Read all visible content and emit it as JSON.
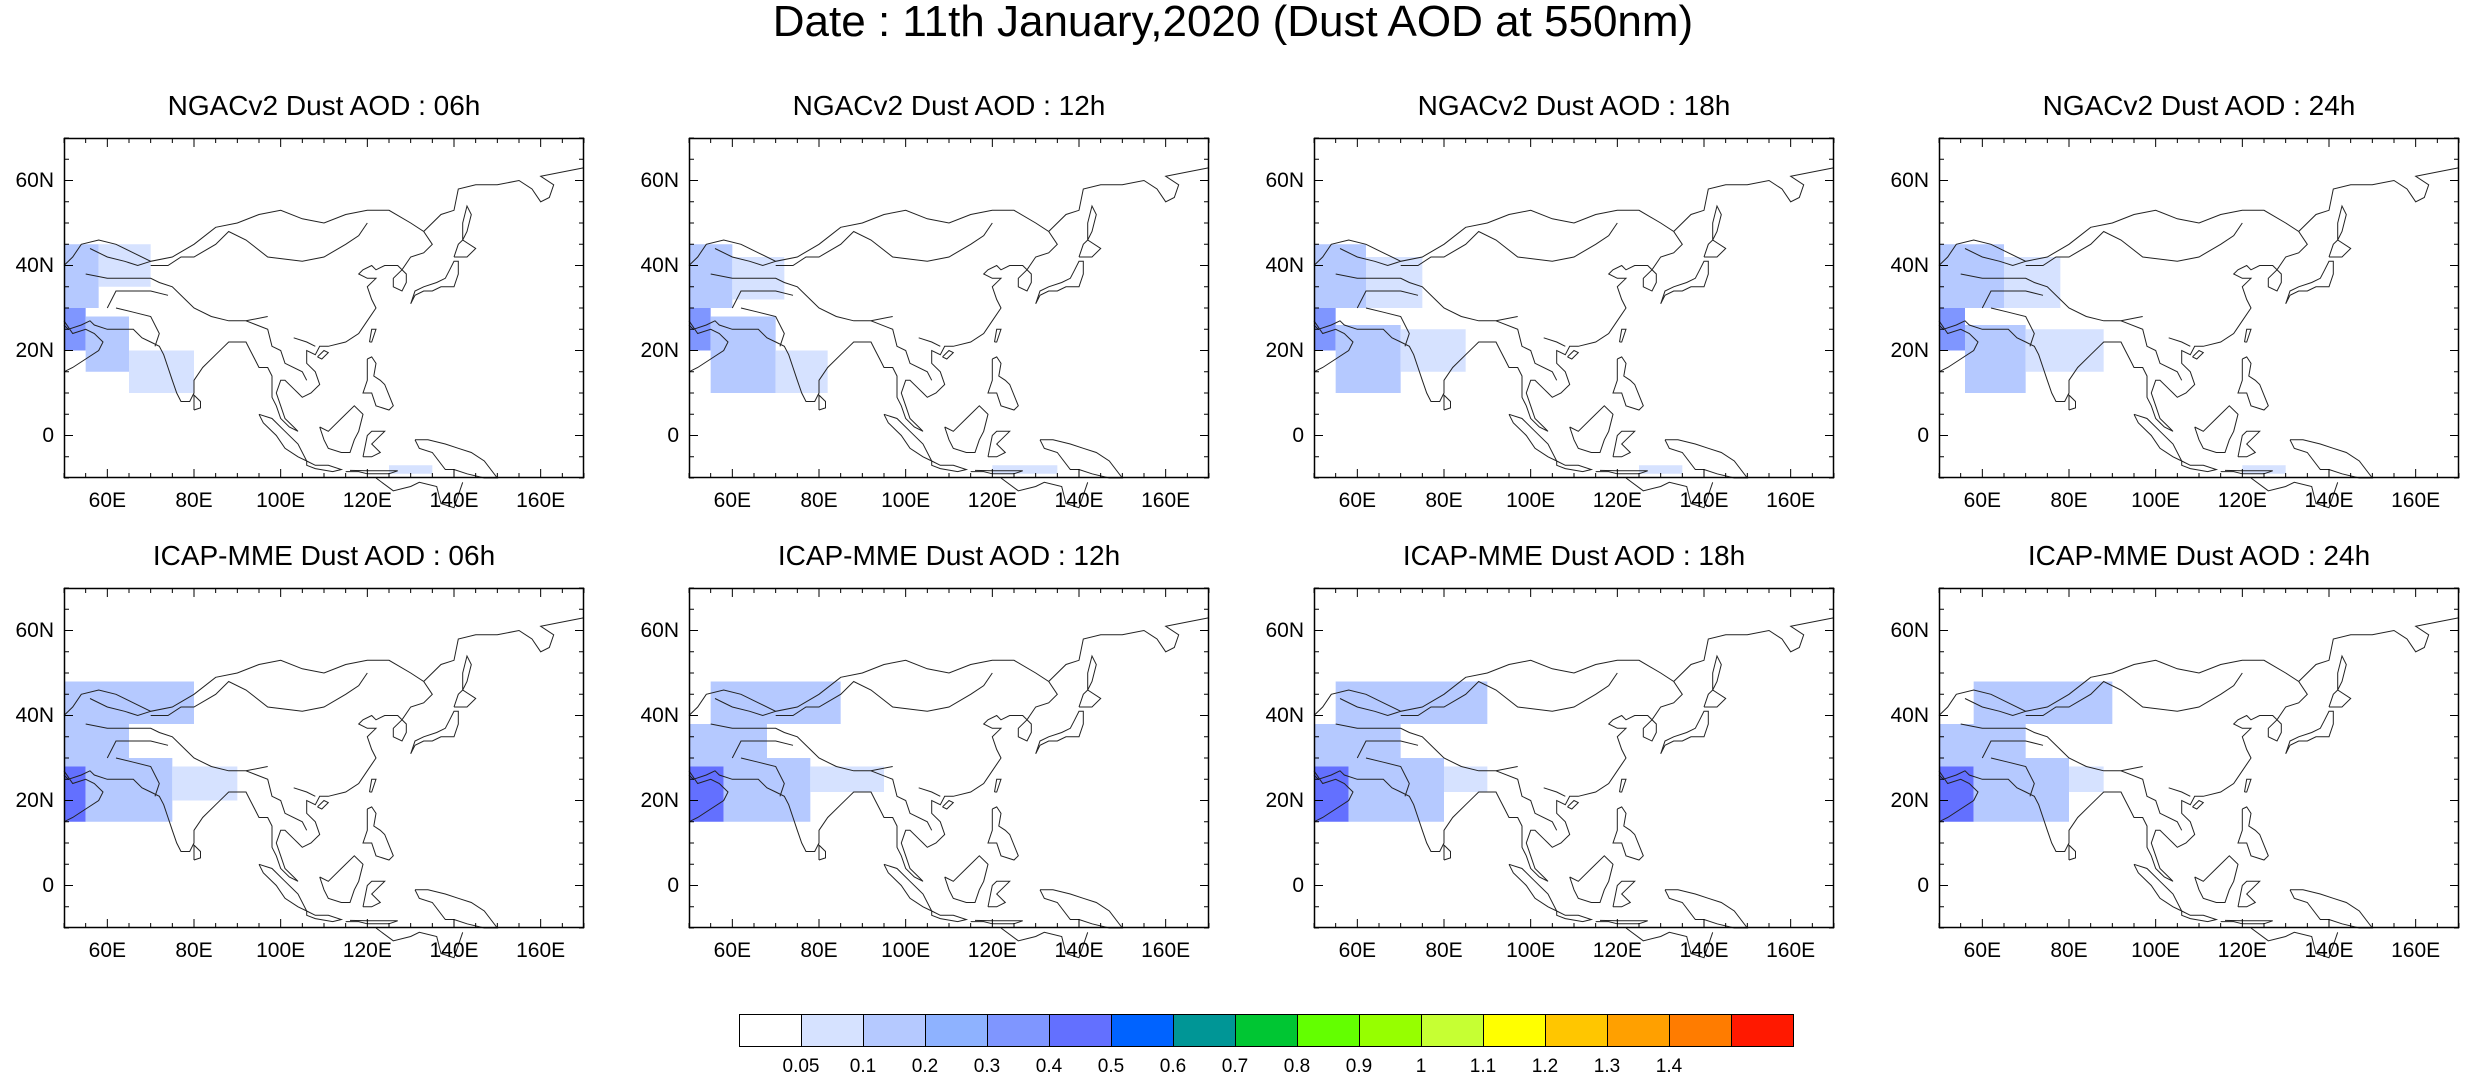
{
  "title": "Date : 11th January,2020 (Dust AOD at 550nm)",
  "panels": [
    {
      "title": "NGACv2 Dust AOD : 06h",
      "field": [
        {
          "lon": [
            50,
            58
          ],
          "lat": [
            30,
            45
          ],
          "v": 0.15
        },
        {
          "lon": [
            58,
            70
          ],
          "lat": [
            35,
            45
          ],
          "v": 0.08
        },
        {
          "lon": [
            50,
            55
          ],
          "lat": [
            20,
            30
          ],
          "v": 0.35
        },
        {
          "lon": [
            55,
            65
          ],
          "lat": [
            15,
            28
          ],
          "v": 0.1
        },
        {
          "lon": [
            65,
            80
          ],
          "lat": [
            10,
            20
          ],
          "v": 0.07
        },
        {
          "lon": [
            125,
            135
          ],
          "lat": [
            -9,
            -7
          ],
          "v": 0.08
        }
      ]
    },
    {
      "title": "NGACv2 Dust AOD : 12h",
      "field": [
        {
          "lon": [
            50,
            60
          ],
          "lat": [
            30,
            45
          ],
          "v": 0.12
        },
        {
          "lon": [
            60,
            72
          ],
          "lat": [
            32,
            42
          ],
          "v": 0.08
        },
        {
          "lon": [
            50,
            55
          ],
          "lat": [
            20,
            30
          ],
          "v": 0.3
        },
        {
          "lon": [
            55,
            70
          ],
          "lat": [
            10,
            28
          ],
          "v": 0.1
        },
        {
          "lon": [
            70,
            82
          ],
          "lat": [
            10,
            20
          ],
          "v": 0.07
        },
        {
          "lon": [
            120,
            135
          ],
          "lat": [
            -9,
            -7
          ],
          "v": 0.08
        }
      ]
    },
    {
      "title": "NGACv2 Dust AOD : 18h",
      "field": [
        {
          "lon": [
            50,
            62
          ],
          "lat": [
            30,
            45
          ],
          "v": 0.12
        },
        {
          "lon": [
            62,
            75
          ],
          "lat": [
            30,
            42
          ],
          "v": 0.08
        },
        {
          "lon": [
            50,
            55
          ],
          "lat": [
            20,
            30
          ],
          "v": 0.3
        },
        {
          "lon": [
            55,
            70
          ],
          "lat": [
            10,
            26
          ],
          "v": 0.1
        },
        {
          "lon": [
            70,
            85
          ],
          "lat": [
            15,
            25
          ],
          "v": 0.07
        },
        {
          "lon": [
            125,
            135
          ],
          "lat": [
            -9,
            -7
          ],
          "v": 0.08
        }
      ]
    },
    {
      "title": "NGACv2 Dust AOD : 24h",
      "field": [
        {
          "lon": [
            50,
            65
          ],
          "lat": [
            30,
            45
          ],
          "v": 0.12
        },
        {
          "lon": [
            65,
            78
          ],
          "lat": [
            30,
            42
          ],
          "v": 0.08
        },
        {
          "lon": [
            50,
            56
          ],
          "lat": [
            20,
            30
          ],
          "v": 0.35
        },
        {
          "lon": [
            56,
            70
          ],
          "lat": [
            10,
            26
          ],
          "v": 0.12
        },
        {
          "lon": [
            70,
            88
          ],
          "lat": [
            15,
            25
          ],
          "v": 0.07
        },
        {
          "lon": [
            120,
            130
          ],
          "lat": [
            -9,
            -7
          ],
          "v": 0.08
        }
      ]
    },
    {
      "title": "ICAP-MME Dust AOD : 06h",
      "field": [
        {
          "lon": [
            50,
            80
          ],
          "lat": [
            38,
            48
          ],
          "v": 0.1
        },
        {
          "lon": [
            50,
            65
          ],
          "lat": [
            28,
            38
          ],
          "v": 0.15
        },
        {
          "lon": [
            50,
            55
          ],
          "lat": [
            15,
            28
          ],
          "v": 0.45
        },
        {
          "lon": [
            55,
            75
          ],
          "lat": [
            15,
            30
          ],
          "v": 0.12
        },
        {
          "lon": [
            75,
            90
          ],
          "lat": [
            20,
            28
          ],
          "v": 0.07
        }
      ]
    },
    {
      "title": "ICAP-MME Dust AOD : 12h",
      "field": [
        {
          "lon": [
            55,
            85
          ],
          "lat": [
            38,
            48
          ],
          "v": 0.1
        },
        {
          "lon": [
            50,
            68
          ],
          "lat": [
            28,
            38
          ],
          "v": 0.15
        },
        {
          "lon": [
            50,
            58
          ],
          "lat": [
            15,
            28
          ],
          "v": 0.45
        },
        {
          "lon": [
            58,
            78
          ],
          "lat": [
            15,
            30
          ],
          "v": 0.12
        },
        {
          "lon": [
            78,
            95
          ],
          "lat": [
            22,
            28
          ],
          "v": 0.07
        }
      ]
    },
    {
      "title": "ICAP-MME Dust AOD : 18h",
      "field": [
        {
          "lon": [
            55,
            90
          ],
          "lat": [
            38,
            48
          ],
          "v": 0.1
        },
        {
          "lon": [
            50,
            70
          ],
          "lat": [
            28,
            38
          ],
          "v": 0.15
        },
        {
          "lon": [
            50,
            58
          ],
          "lat": [
            15,
            28
          ],
          "v": 0.45
        },
        {
          "lon": [
            58,
            80
          ],
          "lat": [
            15,
            30
          ],
          "v": 0.12
        },
        {
          "lon": [
            80,
            90
          ],
          "lat": [
            22,
            28
          ],
          "v": 0.07
        }
      ]
    },
    {
      "title": "ICAP-MME Dust AOD : 24h",
      "field": [
        {
          "lon": [
            58,
            90
          ],
          "lat": [
            38,
            48
          ],
          "v": 0.1
        },
        {
          "lon": [
            50,
            70
          ],
          "lat": [
            28,
            38
          ],
          "v": 0.15
        },
        {
          "lon": [
            50,
            58
          ],
          "lat": [
            15,
            28
          ],
          "v": 0.45
        },
        {
          "lon": [
            58,
            80
          ],
          "lat": [
            15,
            30
          ],
          "v": 0.12
        },
        {
          "lon": [
            80,
            88
          ],
          "lat": [
            22,
            28
          ],
          "v": 0.07
        }
      ]
    }
  ],
  "map_extent": {
    "lon": [
      50,
      170
    ],
    "lat": [
      -10,
      70
    ]
  },
  "lat_ticks": [
    {
      "value": 60,
      "label": "60N"
    },
    {
      "value": 40,
      "label": "40N"
    },
    {
      "value": 20,
      "label": "20N"
    },
    {
      "value": 0,
      "label": "0"
    }
  ],
  "lon_ticks": [
    {
      "value": 60,
      "label": "60E"
    },
    {
      "value": 80,
      "label": "80E"
    },
    {
      "value": 100,
      "label": "100E"
    },
    {
      "value": 120,
      "label": "120E"
    },
    {
      "value": 140,
      "label": "140E"
    },
    {
      "value": 160,
      "label": "160E"
    }
  ],
  "colorbar": {
    "colors": [
      "#ffffff",
      "#d6e2ff",
      "#b5c9ff",
      "#8eb2ff",
      "#7f96ff",
      "#6370ff",
      "#0063ff",
      "#009696",
      "#00c633",
      "#63ff00",
      "#96ff00",
      "#c6ff33",
      "#ffff00",
      "#ffc600",
      "#ffa000",
      "#ff7c00",
      "#ff1900"
    ],
    "labels": [
      "0.05",
      "0.1",
      "0.2",
      "0.3",
      "0.4",
      "0.5",
      "0.6",
      "0.7",
      "0.8",
      "0.9",
      "1",
      "1.1",
      "1.2",
      "1.3",
      "1.4"
    ],
    "levels": [
      0.05,
      0.1,
      0.2,
      0.3,
      0.4,
      0.5,
      0.6,
      0.7,
      0.8,
      0.9,
      1,
      1.1,
      1.2,
      1.3,
      1.4
    ]
  }
}
